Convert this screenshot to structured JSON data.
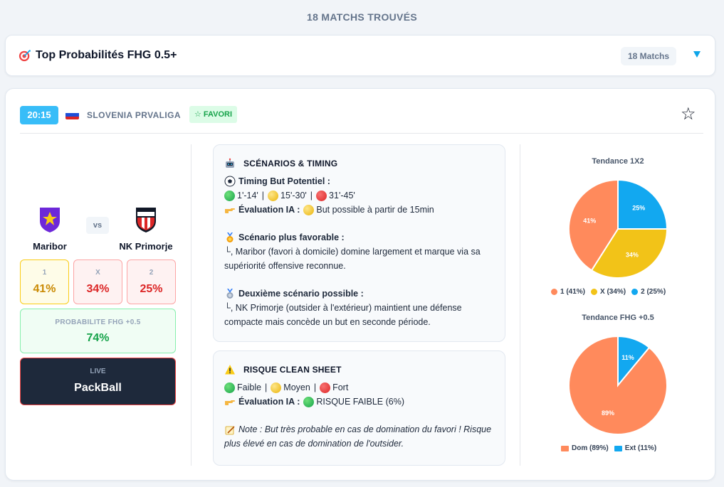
{
  "results_count": "18 MATCHS TROUVÉS",
  "section": {
    "title": "Top Probabilités FHG 0.5+",
    "matches_badge": "18 Matchs"
  },
  "match": {
    "time": "20:15",
    "league": "SLOVENIA PRVALIGA",
    "favori_label": "☆ FAVORI",
    "home": {
      "name": "Maribor",
      "logo_text": "NK MARIBOR"
    },
    "away": {
      "name": "NK Primorje",
      "logo_text": "PRIMORJE"
    },
    "vs_label": "vs",
    "odds": [
      {
        "label": "1",
        "value": "41%"
      },
      {
        "label": "X",
        "value": "34%"
      },
      {
        "label": "2",
        "value": "25%"
      }
    ],
    "fhg": {
      "label": "PROBABILITE FHG +0.5",
      "value": "74%"
    },
    "live": {
      "label": "LIVE",
      "name": "PackBall"
    }
  },
  "scenarios": {
    "title": "SCÉNARIOS & TIMING",
    "timing_heading": "Timing But Potentiel :",
    "timing_ranges": [
      "1'-14'",
      "15'-30'",
      "31'-45'"
    ],
    "ia_label": "Évaluation IA :",
    "ia_text": "But possible à partir de 15min",
    "favorable_heading": "Scénario plus favorable :",
    "favorable_text": "└, Maribor (favori à domicile) domine largement et marque via sa supériorité offensive reconnue.",
    "second_heading": "Deuxième scénario possible :",
    "second_text": "└, NK Primorje (outsider à l'extérieur) maintient une défense compacte mais concède un but en seconde période."
  },
  "risk": {
    "title": "RISQUE CLEAN SHEET",
    "levels": [
      "Faible",
      "Moyen",
      "Fort"
    ],
    "ia_label": "Évaluation IA :",
    "ia_text": "RISQUE FAIBLE (6%)",
    "note": "Note : But très probable en cas de domination du favori ! Risque plus élevé en cas de domination de l'outsider."
  },
  "colors": {
    "accent": "#38bdf8",
    "slice_1": "#ff8a5c",
    "slice_x": "#f2c318",
    "slice_2": "#12a8f0"
  },
  "chart_data": [
    {
      "type": "pie",
      "title": "Tendance 1X2",
      "slices": [
        {
          "label": "1",
          "value": 41,
          "color": "#ff8a5c"
        },
        {
          "label": "X",
          "value": 34,
          "color": "#f2c318"
        },
        {
          "label": "2",
          "value": 25,
          "color": "#12a8f0"
        }
      ],
      "legend": [
        "1 (41%)",
        "X (34%)",
        "2 (25%)"
      ],
      "legend_position": "bottom"
    },
    {
      "type": "pie",
      "title": "Tendance FHG +0.5",
      "slices": [
        {
          "label": "Dom",
          "value": 89,
          "color": "#ff8a5c"
        },
        {
          "label": "Ext",
          "value": 11,
          "color": "#12a8f0"
        }
      ],
      "legend": [
        "Dom (89%)",
        "Ext (11%)"
      ],
      "legend_position": "bottom"
    }
  ]
}
